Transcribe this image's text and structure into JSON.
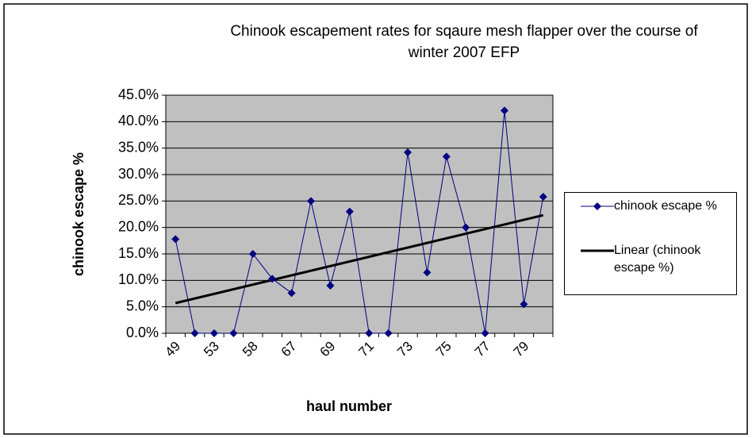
{
  "chart_data": {
    "type": "line",
    "title": "Chinook escapement rates for sqaure mesh flapper over the course of winter 2007 EFP",
    "x_label": "haul number",
    "y_label": "chinook escape %",
    "categories": [
      "49",
      null,
      "53",
      null,
      "58",
      null,
      "67",
      null,
      "69",
      null,
      "71",
      null,
      "73",
      null,
      "75",
      null,
      "77",
      null,
      "79",
      null
    ],
    "series": [
      {
        "name": "chinook escape %",
        "color": "#000080",
        "values": [
          17.8,
          0,
          0,
          0,
          15,
          10.3,
          7.6,
          25,
          9,
          23,
          0,
          0,
          34.2,
          11.5,
          33.4,
          20,
          0,
          42.1,
          5.5,
          25.8
        ]
      }
    ],
    "trendline": {
      "name": "Linear (chinook escape %)",
      "kind": "linear",
      "color": "#000000"
    },
    "ylim": [
      0,
      45
    ],
    "yticks": [
      {
        "value": 0,
        "label": "0.0%"
      },
      {
        "value": 5,
        "label": "5.0%"
      },
      {
        "value": 10,
        "label": "10.0%"
      },
      {
        "value": 15,
        "label": "15.0%"
      },
      {
        "value": 20,
        "label": "20.0%"
      },
      {
        "value": 25,
        "label": "25.0%"
      },
      {
        "value": 30,
        "label": "30.0%"
      },
      {
        "value": 35,
        "label": "35.0%"
      },
      {
        "value": 40,
        "label": "40.0%"
      },
      {
        "value": 45,
        "label": "45.0%"
      }
    ],
    "grid": true,
    "legend": "right"
  }
}
